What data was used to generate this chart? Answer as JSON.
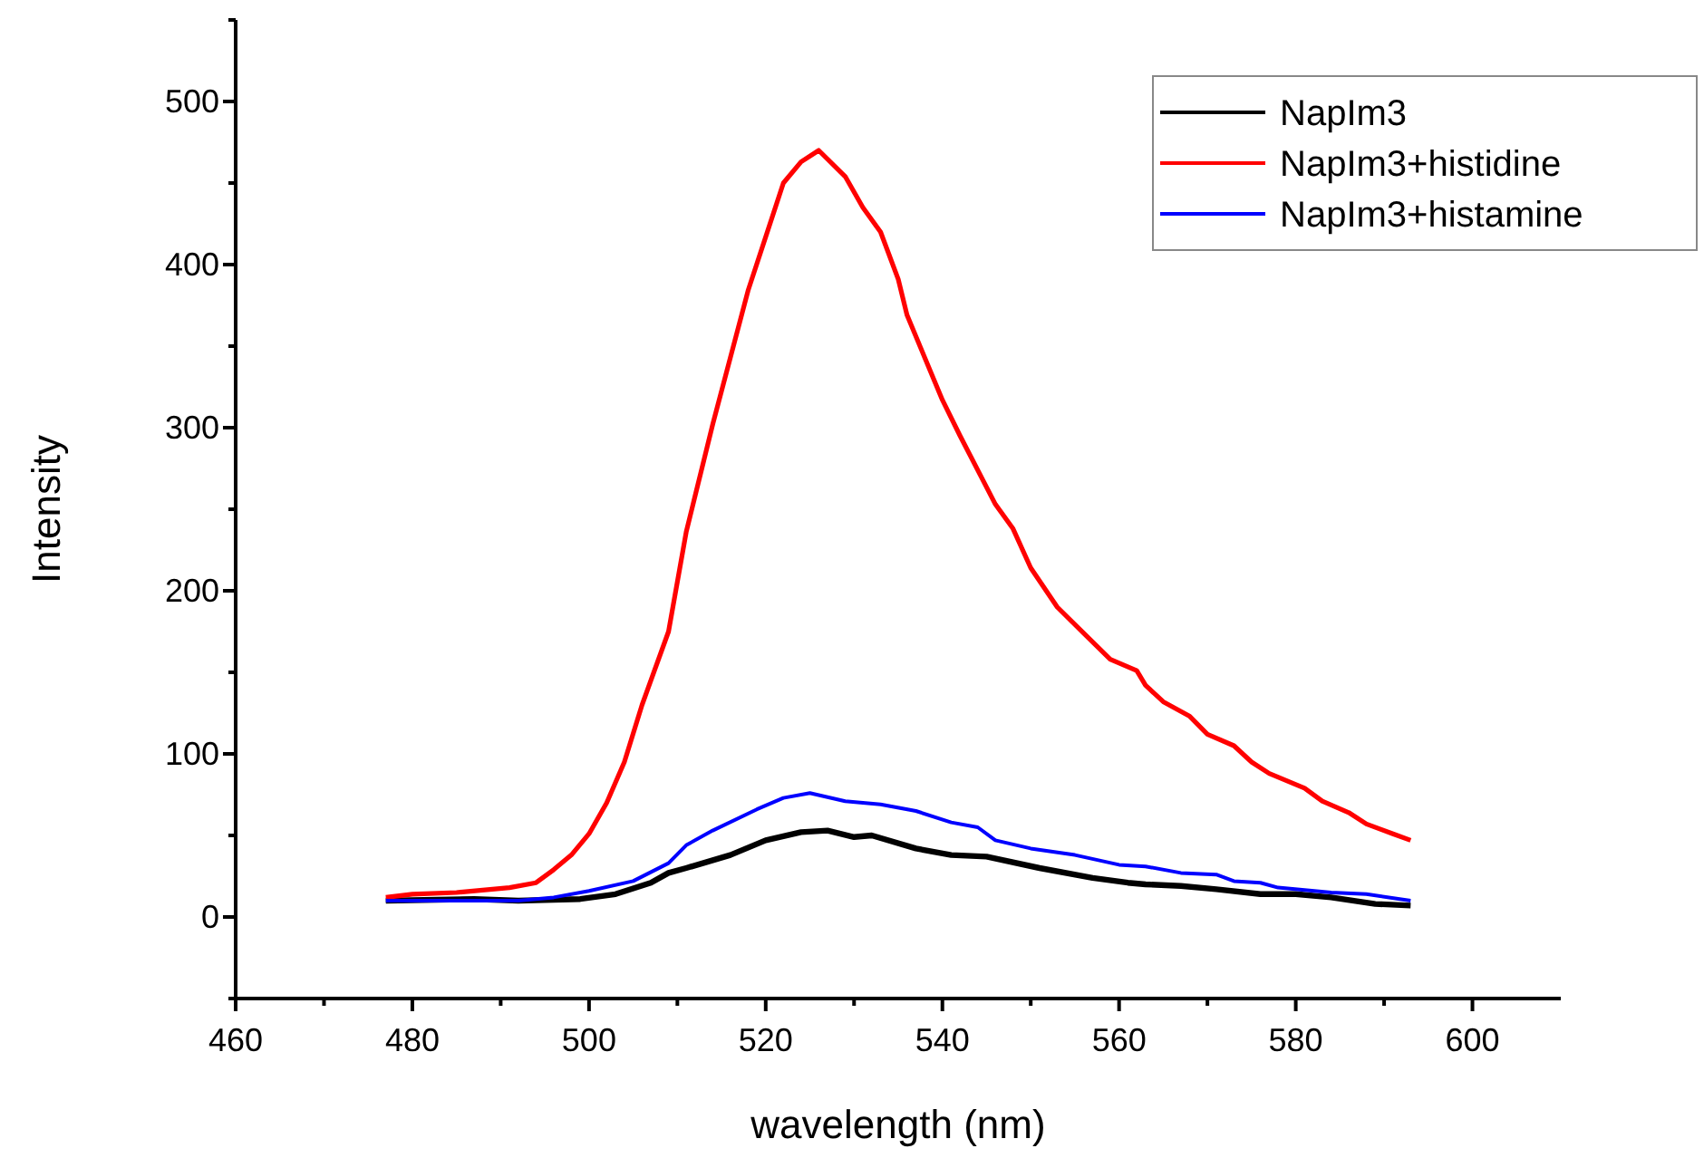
{
  "chart_data": {
    "type": "line",
    "xlabel": "wavelength (nm)",
    "ylabel": "Intensity",
    "xlim": [
      460,
      610
    ],
    "xticks": [
      460,
      {
        "value": 470,
        "label": null
      },
      480,
      {
        "value": 490,
        "label": null
      },
      500,
      {
        "value": 510,
        "label": null
      },
      520,
      {
        "value": 530,
        "label": null
      },
      540,
      {
        "value": 550,
        "label": null
      },
      560,
      {
        "value": 570,
        "label": null
      },
      580,
      {
        "value": 590,
        "label": null
      },
      600
    ],
    "ylim": [
      -50,
      550
    ],
    "yticks": [
      {
        "value": -50,
        "label": null
      },
      0,
      {
        "value": 50,
        "label": null
      },
      100,
      {
        "value": 150,
        "label": null
      },
      200,
      {
        "value": 250,
        "label": null
      },
      300,
      {
        "value": 350,
        "label": null
      },
      400,
      {
        "value": 450,
        "label": null
      },
      500,
      {
        "value": 550,
        "label": null
      }
    ],
    "grid": false,
    "legend": "top right",
    "marker": "none",
    "line_style": "solid",
    "series": [
      {
        "name": "NapIm3",
        "color": "#000000",
        "x": [
          477,
          487,
          492,
          499,
          503,
          507,
          509,
          511,
          516,
          520,
          524,
          527,
          530,
          532,
          537,
          541,
          545,
          551,
          557,
          561,
          563,
          567,
          571,
          576,
          580,
          584,
          589,
          593
        ],
        "values": [
          10,
          11,
          10,
          11,
          14,
          21,
          27,
          30,
          38,
          47,
          52,
          53,
          49,
          50,
          42,
          38,
          37,
          30,
          24,
          21,
          20,
          19,
          17,
          14,
          14,
          12,
          8,
          7
        ]
      },
      {
        "name": "NapIm3+histidine",
        "color": "#ff0000",
        "x": [
          477,
          480,
          485,
          491,
          494,
          496,
          498,
          500,
          502,
          504,
          506,
          509,
          511,
          514,
          518,
          522,
          524,
          526,
          529,
          531,
          533,
          535,
          536,
          540,
          542,
          546,
          548,
          550,
          553,
          556,
          559,
          562,
          563,
          565,
          568,
          570,
          573,
          575,
          577,
          581,
          583,
          586,
          588,
          591,
          593
        ],
        "values": [
          12,
          14,
          15,
          18,
          21,
          29,
          38,
          51,
          70,
          95,
          130,
          175,
          236,
          302,
          384,
          450,
          463,
          470,
          454,
          435,
          420,
          391,
          369,
          317,
          295,
          253,
          238,
          214,
          190,
          174,
          158,
          151,
          142,
          132,
          123,
          112,
          105,
          95,
          88,
          79,
          71,
          64,
          57,
          51,
          47
        ]
      },
      {
        "name": "NapIm3+histamine",
        "color": "#0000ff",
        "x": [
          477,
          485,
          492,
          496,
          500,
          505,
          509,
          511,
          514,
          519,
          522,
          525,
          529,
          533,
          537,
          541,
          544,
          546,
          550,
          555,
          560,
          563,
          567,
          571,
          573,
          576,
          578,
          584,
          588,
          593
        ],
        "values": [
          10,
          10,
          10,
          12,
          16,
          22,
          33,
          44,
          53,
          66,
          73,
          76,
          71,
          69,
          65,
          58,
          55,
          47,
          42,
          38,
          32,
          31,
          27,
          26,
          22,
          21,
          18,
          15,
          14,
          10
        ]
      }
    ]
  }
}
